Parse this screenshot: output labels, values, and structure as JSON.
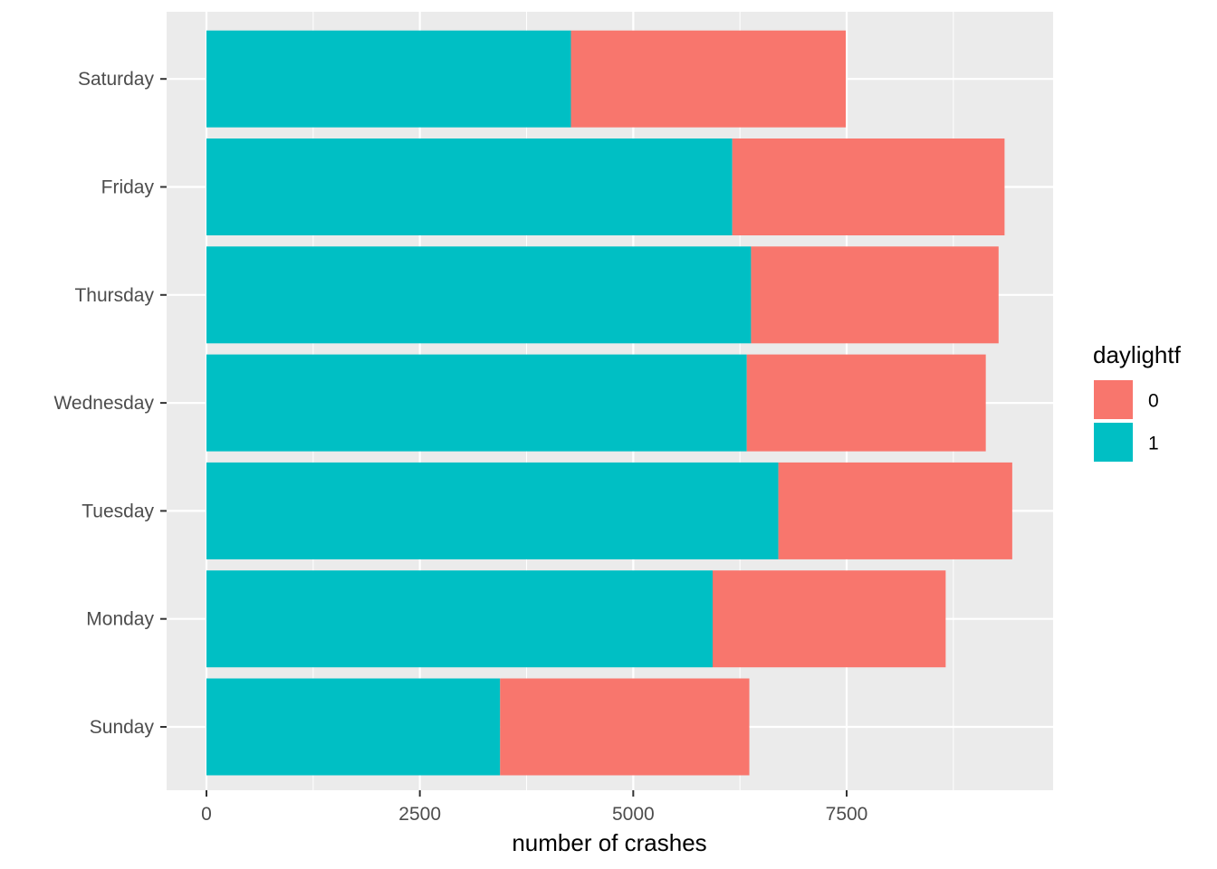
{
  "chart_data": {
    "type": "bar",
    "orientation": "horizontal",
    "stacked": true,
    "title": "",
    "xlabel": "number of crashes",
    "ylabel": "",
    "xlim": [
      0,
      9800
    ],
    "x_ticks": [
      0,
      2500,
      5000,
      7500
    ],
    "x_tick_labels": [
      "0",
      "2500",
      "5000",
      "7500"
    ],
    "categories": [
      "Sunday",
      "Monday",
      "Tuesday",
      "Wednesday",
      "Thursday",
      "Friday",
      "Saturday"
    ],
    "series": [
      {
        "name": "1",
        "color": "#00BFC4",
        "values": [
          3440,
          5930,
          6700,
          6330,
          6380,
          6160,
          4270
        ]
      },
      {
        "name": "0",
        "color": "#F8766D",
        "values": [
          2920,
          2730,
          2740,
          2800,
          2900,
          3190,
          3220
        ]
      }
    ],
    "legend": {
      "title": "daylightf",
      "placement": "right",
      "entries": [
        {
          "label": "0",
          "color": "#F8766D"
        },
        {
          "label": "1",
          "color": "#00BFC4"
        }
      ]
    },
    "panel_background": "#EBEBEB",
    "grid": true
  }
}
